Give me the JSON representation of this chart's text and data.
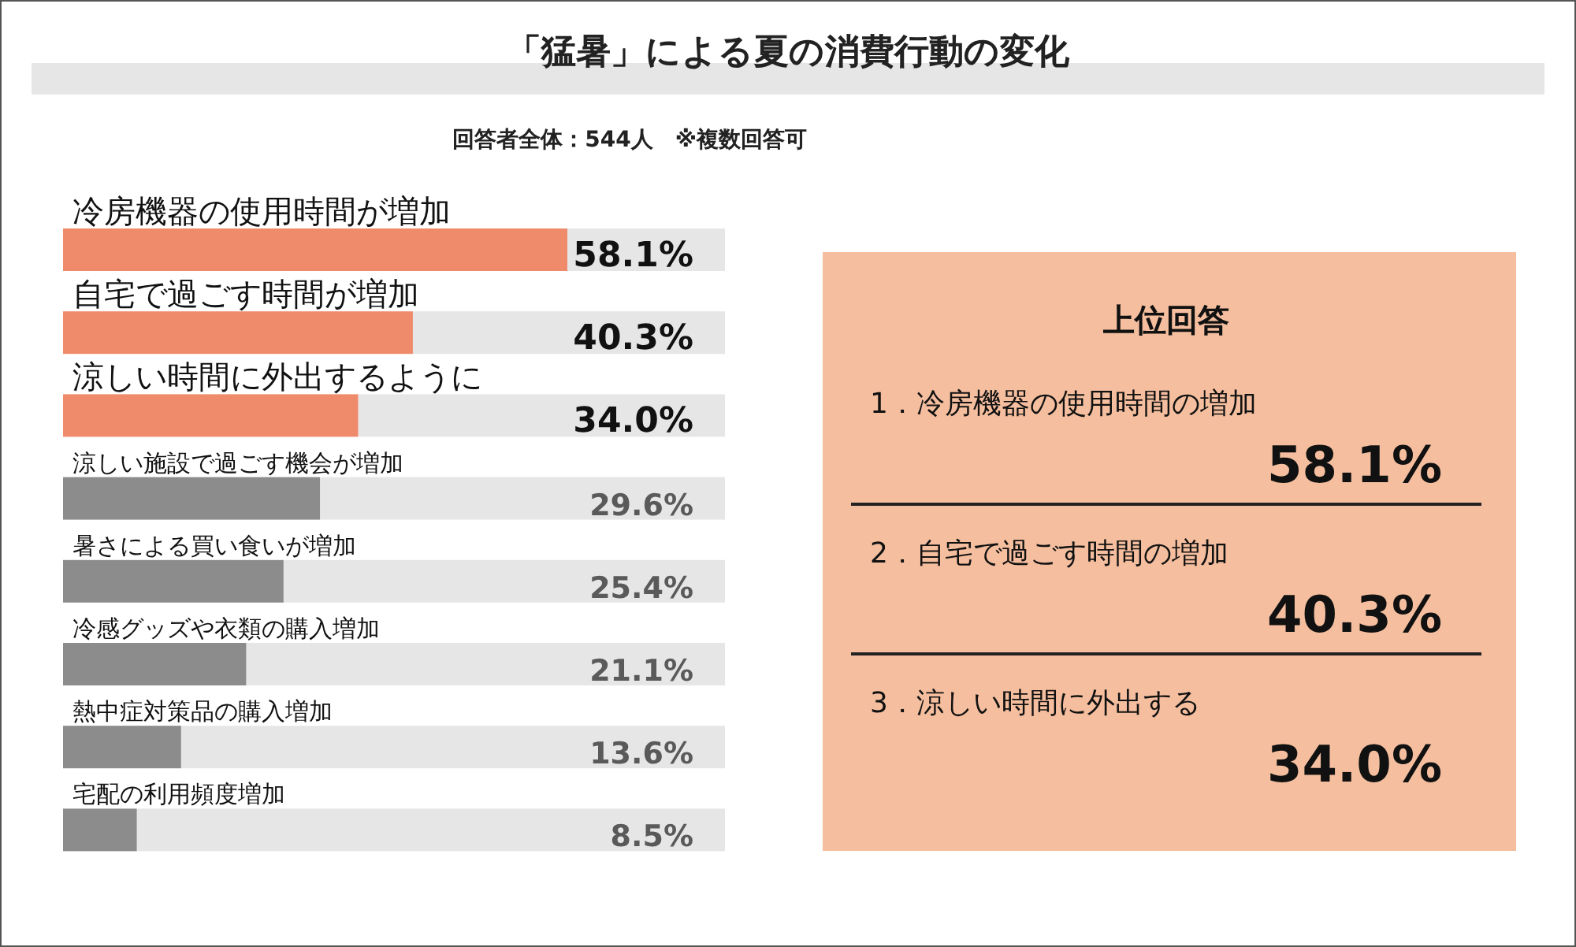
{
  "chart_data": [
    {
      "type": "bar",
      "orientation": "horizontal",
      "title": "「猛暑」による夏の消費行動の変化",
      "subtitle": "回答者全体：544人　※複数回答可",
      "categories": [
        "冷房機器の使用時間が増加",
        "自宅で過ごす時間が増加",
        "涼しい時間に外出するように",
        "涼しい施設で過ごす機会が増加",
        "暑さによる買い食いが増加",
        "冷感グッズや衣類の購入増加",
        "熱中症対策品の購入増加",
        "宅配の利用頻度増加"
      ],
      "values": [
        58.1,
        40.3,
        34.0,
        29.6,
        25.4,
        21.1,
        13.6,
        8.5
      ],
      "value_labels": [
        "58.1%",
        "40.3%",
        "34.0%",
        "29.6%",
        "25.4%",
        "21.1%",
        "13.6%",
        "8.5%"
      ],
      "colors": [
        "#ef8a6a",
        "#ef8a6a",
        "#ef8a6a",
        "#8c8c8c",
        "#8c8c8c",
        "#8c8c8c",
        "#8c8c8c",
        "#8c8c8c"
      ]
    },
    {
      "type": "other",
      "title": "上位回答",
      "annotations": [
        "1．冷房機器の使用時間の増加",
        "58.1%",
        "2．自宅で過ごす時間の増加",
        "40.3%",
        "3．涼しい時間に外出する",
        "34.0%"
      ]
    }
  ]
}
